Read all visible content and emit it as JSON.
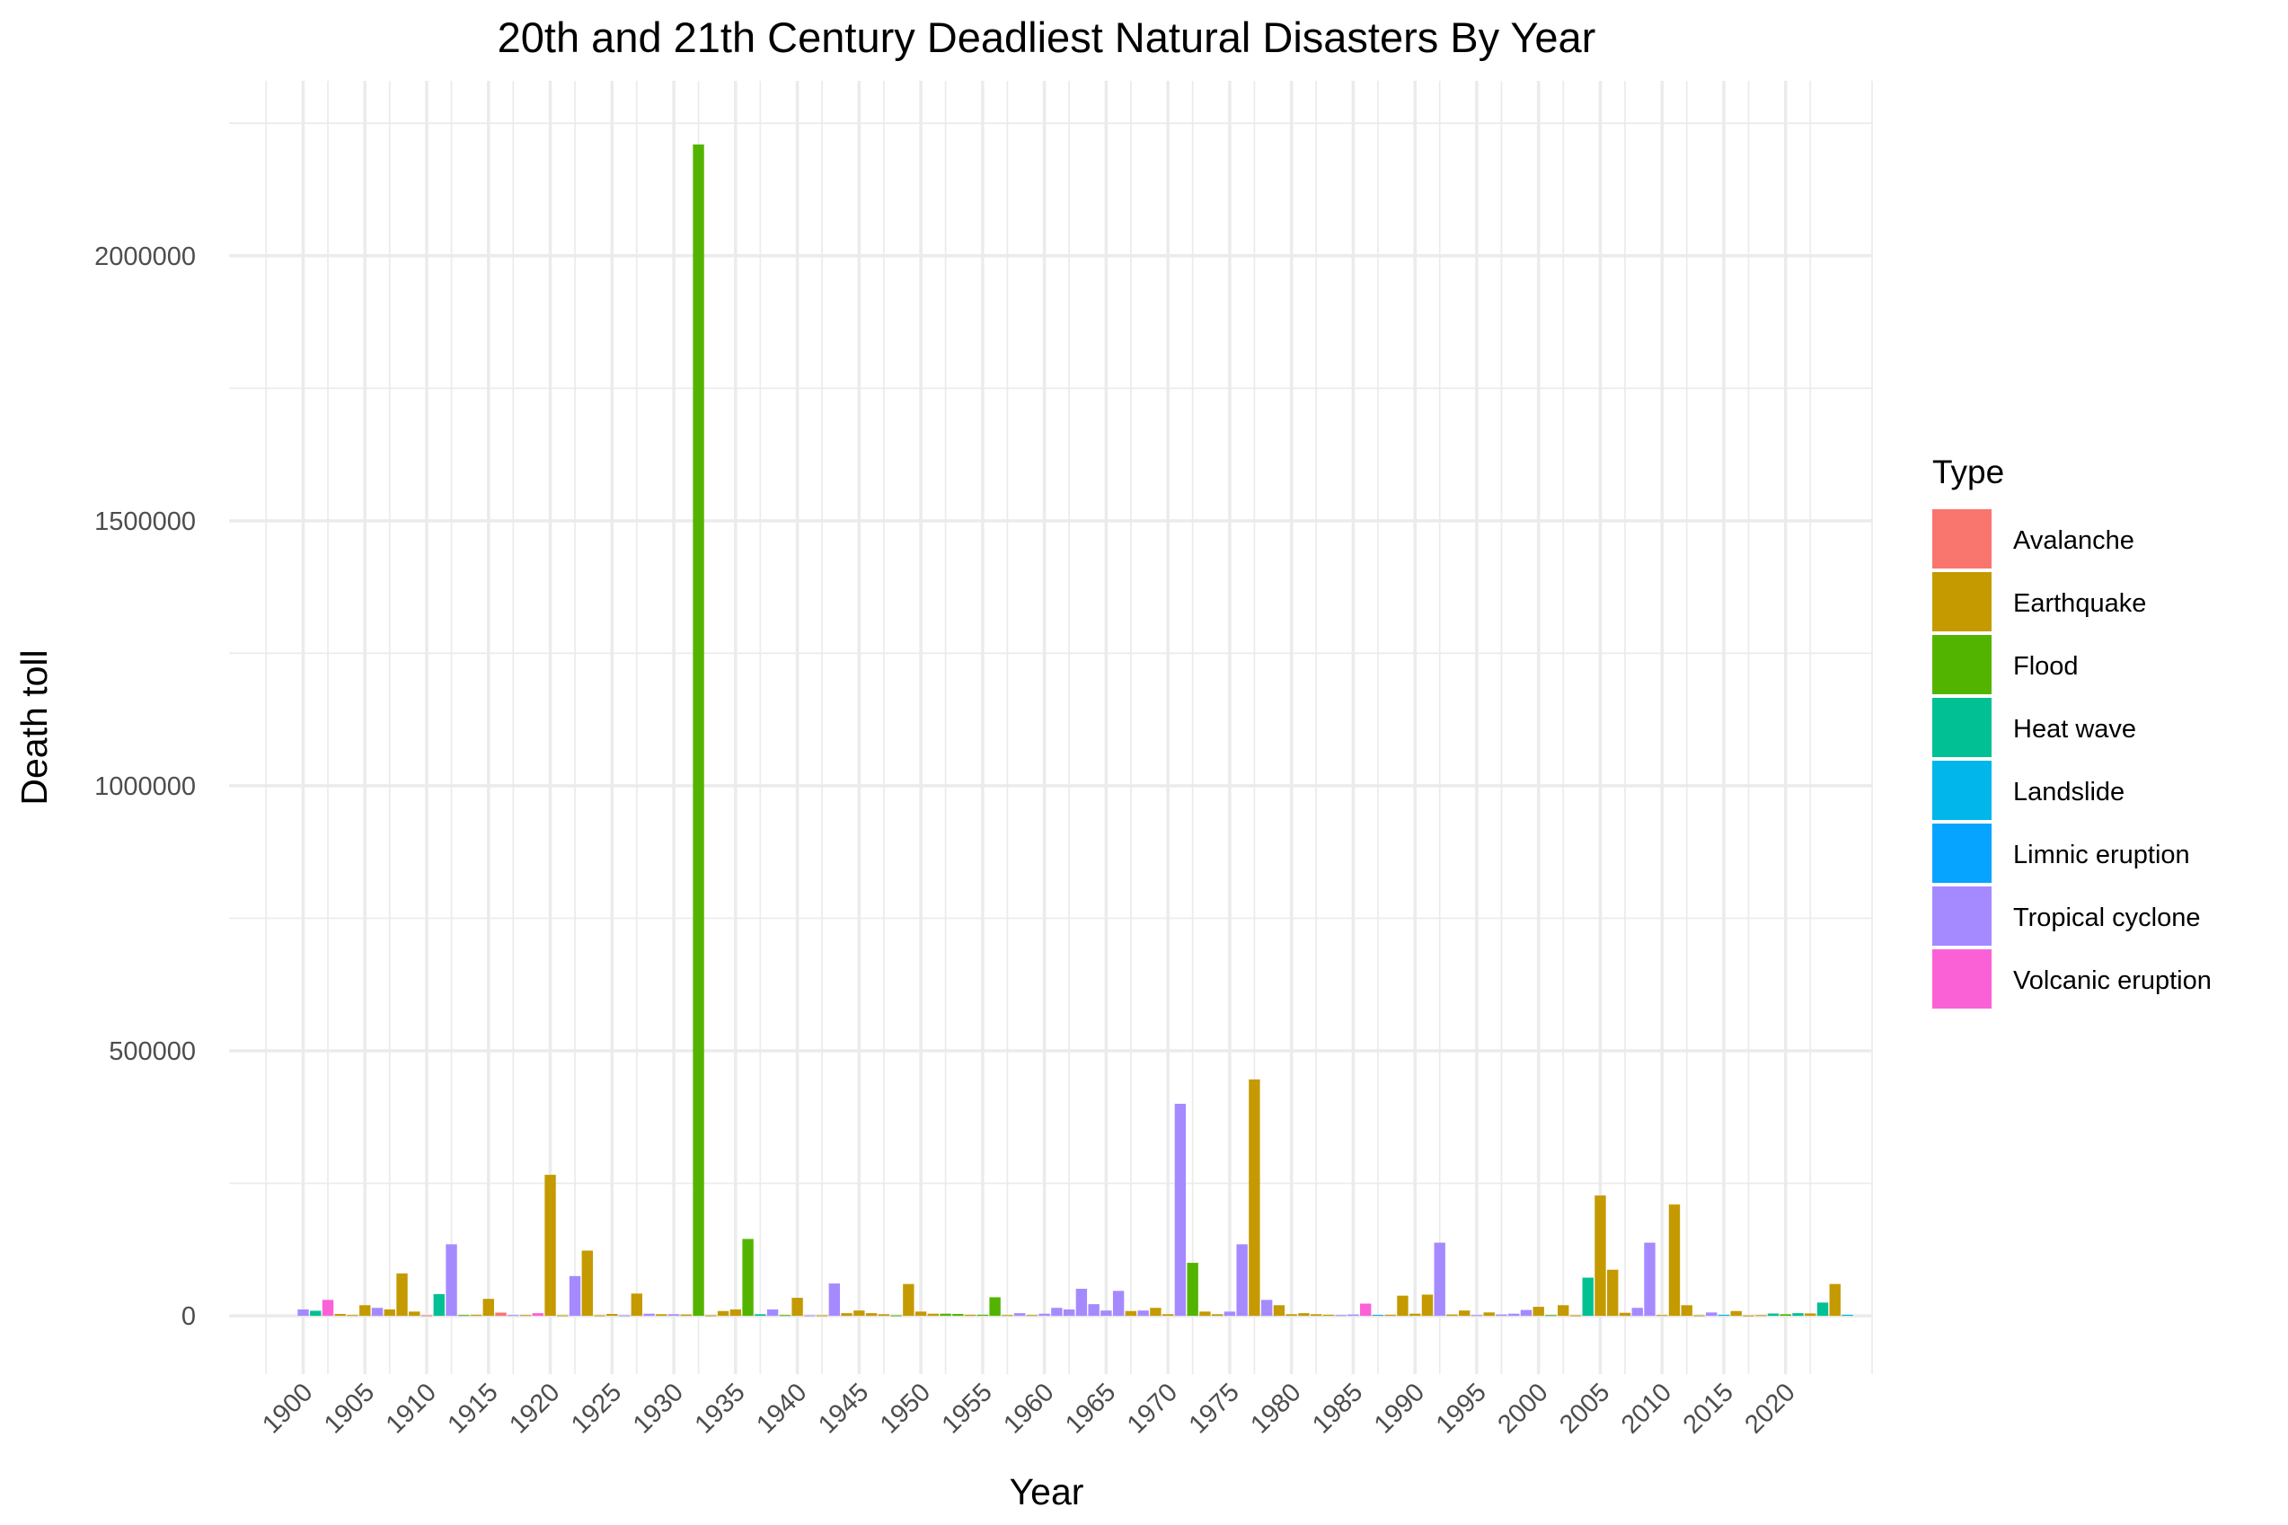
{
  "chart_data": {
    "type": "bar",
    "title": "20th and 21th Century Deadliest Natural Disasters By Year",
    "xlabel": "Year",
    "ylabel": "Death toll",
    "legend_title": "Type",
    "legend_position": "right",
    "grid": true,
    "xlim": [
      1894,
      2027
    ],
    "ylim": [
      -110000,
      2330000
    ],
    "x_ticks": [
      1900,
      1905,
      1910,
      1915,
      1920,
      1925,
      1930,
      1935,
      1940,
      1945,
      1950,
      1955,
      1960,
      1965,
      1970,
      1975,
      1980,
      1985,
      1990,
      1995,
      2000,
      2005,
      2010,
      2015,
      2020
    ],
    "y_ticks": [
      0,
      500000,
      1000000,
      1500000,
      2000000
    ],
    "y_tick_labels": [
      "0",
      "500000",
      "1000000",
      "1500000",
      "2000000"
    ],
    "x_tick_rotation": 45,
    "types": [
      {
        "name": "Avalanche",
        "color": "#F8766D"
      },
      {
        "name": "Earthquake",
        "color": "#C49A00"
      },
      {
        "name": "Flood",
        "color": "#53B400"
      },
      {
        "name": "Heat wave",
        "color": "#00C094"
      },
      {
        "name": "Landslide",
        "color": "#00B6EB"
      },
      {
        "name": "Limnic eruption",
        "color": "#06A4FF"
      },
      {
        "name": "Tropical cyclone",
        "color": "#A58AFF"
      },
      {
        "name": "Volcanic eruption",
        "color": "#FB61D7"
      }
    ],
    "bars": [
      {
        "year": 1900,
        "type": "Tropical cyclone",
        "deaths": 12000
      },
      {
        "year": 1901,
        "type": "Heat wave",
        "deaths": 9500
      },
      {
        "year": 1902,
        "type": "Volcanic eruption",
        "deaths": 30000
      },
      {
        "year": 1903,
        "type": "Earthquake",
        "deaths": 3500
      },
      {
        "year": 1904,
        "type": "Earthquake",
        "deaths": 1500
      },
      {
        "year": 1905,
        "type": "Earthquake",
        "deaths": 20000
      },
      {
        "year": 1906,
        "type": "Tropical cyclone",
        "deaths": 15000
      },
      {
        "year": 1907,
        "type": "Earthquake",
        "deaths": 12000
      },
      {
        "year": 1908,
        "type": "Earthquake",
        "deaths": 80000
      },
      {
        "year": 1909,
        "type": "Earthquake",
        "deaths": 8000
      },
      {
        "year": 1910,
        "type": "Avalanche",
        "deaths": 1000
      },
      {
        "year": 1911,
        "type": "Heat wave",
        "deaths": 41000
      },
      {
        "year": 1912,
        "type": "Tropical cyclone",
        "deaths": 135000
      },
      {
        "year": 1913,
        "type": "Flood",
        "deaths": 1500
      },
      {
        "year": 1914,
        "type": "Earthquake",
        "deaths": 2000
      },
      {
        "year": 1915,
        "type": "Earthquake",
        "deaths": 32000
      },
      {
        "year": 1916,
        "type": "Avalanche",
        "deaths": 6000
      },
      {
        "year": 1917,
        "type": "Tropical cyclone",
        "deaths": 1500
      },
      {
        "year": 1918,
        "type": "Earthquake",
        "deaths": 1500
      },
      {
        "year": 1919,
        "type": "Volcanic eruption",
        "deaths": 5000
      },
      {
        "year": 1920,
        "type": "Earthquake",
        "deaths": 266000
      },
      {
        "year": 1921,
        "type": "Earthquake",
        "deaths": 1000
      },
      {
        "year": 1922,
        "type": "Tropical cyclone",
        "deaths": 75000
      },
      {
        "year": 1923,
        "type": "Earthquake",
        "deaths": 123000
      },
      {
        "year": 1924,
        "type": "Earthquake",
        "deaths": 1000
      },
      {
        "year": 1925,
        "type": "Earthquake",
        "deaths": 3500
      },
      {
        "year": 1926,
        "type": "Tropical cyclone",
        "deaths": 1000
      },
      {
        "year": 1927,
        "type": "Earthquake",
        "deaths": 42000
      },
      {
        "year": 1928,
        "type": "Tropical cyclone",
        "deaths": 4000
      },
      {
        "year": 1929,
        "type": "Earthquake",
        "deaths": 3000
      },
      {
        "year": 1930,
        "type": "Tropical cyclone",
        "deaths": 3000
      },
      {
        "year": 1931,
        "type": "Earthquake",
        "deaths": 2500
      },
      {
        "year": 1932,
        "type": "Flood",
        "deaths": 2210000
      },
      {
        "year": 1933,
        "type": "Earthquake",
        "deaths": 1000
      },
      {
        "year": 1934,
        "type": "Earthquake",
        "deaths": 9000
      },
      {
        "year": 1935,
        "type": "Earthquake",
        "deaths": 12000
      },
      {
        "year": 1936,
        "type": "Flood",
        "deaths": 145000
      },
      {
        "year": 1937,
        "type": "Heat wave",
        "deaths": 3000
      },
      {
        "year": 1938,
        "type": "Tropical cyclone",
        "deaths": 12000
      },
      {
        "year": 1939,
        "type": "Flood",
        "deaths": 1500
      },
      {
        "year": 1940,
        "type": "Earthquake",
        "deaths": 34000
      },
      {
        "year": 1941,
        "type": "Tropical cyclone",
        "deaths": 1000
      },
      {
        "year": 1942,
        "type": "Earthquake",
        "deaths": 1000
      },
      {
        "year": 1943,
        "type": "Tropical cyclone",
        "deaths": 61000
      },
      {
        "year": 1944,
        "type": "Earthquake",
        "deaths": 5000
      },
      {
        "year": 1945,
        "type": "Earthquake",
        "deaths": 10000
      },
      {
        "year": 1946,
        "type": "Earthquake",
        "deaths": 5000
      },
      {
        "year": 1947,
        "type": "Earthquake",
        "deaths": 3000
      },
      {
        "year": 1948,
        "type": "Flood",
        "deaths": 1000
      },
      {
        "year": 1949,
        "type": "Earthquake",
        "deaths": 60000
      },
      {
        "year": 1950,
        "type": "Earthquake",
        "deaths": 8000
      },
      {
        "year": 1951,
        "type": "Earthquake",
        "deaths": 4000
      },
      {
        "year": 1952,
        "type": "Flood",
        "deaths": 4000
      },
      {
        "year": 1953,
        "type": "Flood",
        "deaths": 3500
      },
      {
        "year": 1954,
        "type": "Earthquake",
        "deaths": 2000
      },
      {
        "year": 1955,
        "type": "Flood",
        "deaths": 2000
      },
      {
        "year": 1956,
        "type": "Flood",
        "deaths": 35000
      },
      {
        "year": 1957,
        "type": "Earthquake",
        "deaths": 1500
      },
      {
        "year": 1958,
        "type": "Tropical cyclone",
        "deaths": 5000
      },
      {
        "year": 1959,
        "type": "Earthquake",
        "deaths": 1500
      },
      {
        "year": 1960,
        "type": "Tropical cyclone",
        "deaths": 4000
      },
      {
        "year": 1961,
        "type": "Tropical cyclone",
        "deaths": 15000
      },
      {
        "year": 1962,
        "type": "Tropical cyclone",
        "deaths": 12000
      },
      {
        "year": 1963,
        "type": "Tropical cyclone",
        "deaths": 51000
      },
      {
        "year": 1964,
        "type": "Tropical cyclone",
        "deaths": 22000
      },
      {
        "year": 1965,
        "type": "Tropical cyclone",
        "deaths": 10000
      },
      {
        "year": 1966,
        "type": "Tropical cyclone",
        "deaths": 47000
      },
      {
        "year": 1967,
        "type": "Earthquake",
        "deaths": 9000
      },
      {
        "year": 1968,
        "type": "Tropical cyclone",
        "deaths": 10000
      },
      {
        "year": 1969,
        "type": "Earthquake",
        "deaths": 15000
      },
      {
        "year": 1970,
        "type": "Earthquake",
        "deaths": 3000
      },
      {
        "year": 1971,
        "type": "Tropical cyclone",
        "deaths": 400000
      },
      {
        "year": 1972,
        "type": "Flood",
        "deaths": 100000
      },
      {
        "year": 1973,
        "type": "Earthquake",
        "deaths": 8000
      },
      {
        "year": 1974,
        "type": "Earthquake",
        "deaths": 3000
      },
      {
        "year": 1975,
        "type": "Tropical cyclone",
        "deaths": 8000
      },
      {
        "year": 1976,
        "type": "Tropical cyclone",
        "deaths": 135000
      },
      {
        "year": 1977,
        "type": "Earthquake",
        "deaths": 446000
      },
      {
        "year": 1978,
        "type": "Tropical cyclone",
        "deaths": 30000
      },
      {
        "year": 1979,
        "type": "Earthquake",
        "deaths": 20000
      },
      {
        "year": 1980,
        "type": "Earthquake",
        "deaths": 3000
      },
      {
        "year": 1981,
        "type": "Earthquake",
        "deaths": 5000
      },
      {
        "year": 1982,
        "type": "Earthquake",
        "deaths": 3000
      },
      {
        "year": 1983,
        "type": "Earthquake",
        "deaths": 2000
      },
      {
        "year": 1984,
        "type": "Tropical cyclone",
        "deaths": 1500
      },
      {
        "year": 1985,
        "type": "Tropical cyclone",
        "deaths": 2500
      },
      {
        "year": 1986,
        "type": "Volcanic eruption",
        "deaths": 23000
      },
      {
        "year": 1987,
        "type": "Limnic eruption",
        "deaths": 1700
      },
      {
        "year": 1988,
        "type": "Earthquake",
        "deaths": 2000
      },
      {
        "year": 1989,
        "type": "Earthquake",
        "deaths": 38000
      },
      {
        "year": 1990,
        "type": "Earthquake",
        "deaths": 4000
      },
      {
        "year": 1991,
        "type": "Earthquake",
        "deaths": 40000
      },
      {
        "year": 1992,
        "type": "Tropical cyclone",
        "deaths": 138000
      },
      {
        "year": 1993,
        "type": "Earthquake",
        "deaths": 2500
      },
      {
        "year": 1994,
        "type": "Earthquake",
        "deaths": 10000
      },
      {
        "year": 1995,
        "type": "Tropical cyclone",
        "deaths": 1500
      },
      {
        "year": 1996,
        "type": "Earthquake",
        "deaths": 6400
      },
      {
        "year": 1997,
        "type": "Tropical cyclone",
        "deaths": 2500
      },
      {
        "year": 1998,
        "type": "Tropical cyclone",
        "deaths": 4000
      },
      {
        "year": 1999,
        "type": "Tropical cyclone",
        "deaths": 11000
      },
      {
        "year": 2000,
        "type": "Earthquake",
        "deaths": 17000
      },
      {
        "year": 2001,
        "type": "Flood",
        "deaths": 1500
      },
      {
        "year": 2002,
        "type": "Earthquake",
        "deaths": 20000
      },
      {
        "year": 2003,
        "type": "Earthquake",
        "deaths": 1000
      },
      {
        "year": 2004,
        "type": "Heat wave",
        "deaths": 72000
      },
      {
        "year": 2005,
        "type": "Earthquake",
        "deaths": 227000
      },
      {
        "year": 2006,
        "type": "Earthquake",
        "deaths": 87000
      },
      {
        "year": 2007,
        "type": "Earthquake",
        "deaths": 5700
      },
      {
        "year": 2008,
        "type": "Tropical cyclone",
        "deaths": 15000
      },
      {
        "year": 2009,
        "type": "Tropical cyclone",
        "deaths": 138000
      },
      {
        "year": 2010,
        "type": "Earthquake",
        "deaths": 1500
      },
      {
        "year": 2011,
        "type": "Earthquake",
        "deaths": 210000
      },
      {
        "year": 2012,
        "type": "Earthquake",
        "deaths": 20000
      },
      {
        "year": 2013,
        "type": "Earthquake",
        "deaths": 1000
      },
      {
        "year": 2014,
        "type": "Tropical cyclone",
        "deaths": 6300
      },
      {
        "year": 2015,
        "type": "Landslide",
        "deaths": 2000
      },
      {
        "year": 2016,
        "type": "Earthquake",
        "deaths": 9000
      },
      {
        "year": 2017,
        "type": "Earthquake",
        "deaths": 700
      },
      {
        "year": 2018,
        "type": "Earthquake",
        "deaths": 1300
      },
      {
        "year": 2019,
        "type": "Heat wave",
        "deaths": 4300
      },
      {
        "year": 2020,
        "type": "Flood",
        "deaths": 3000
      },
      {
        "year": 2021,
        "type": "Heat wave",
        "deaths": 5000
      },
      {
        "year": 2022,
        "type": "Earthquake",
        "deaths": 4500
      },
      {
        "year": 2023,
        "type": "Heat wave",
        "deaths": 25000
      },
      {
        "year": 2024,
        "type": "Earthquake",
        "deaths": 60000
      },
      {
        "year": 2025,
        "type": "Landslide",
        "deaths": 2000
      }
    ]
  }
}
